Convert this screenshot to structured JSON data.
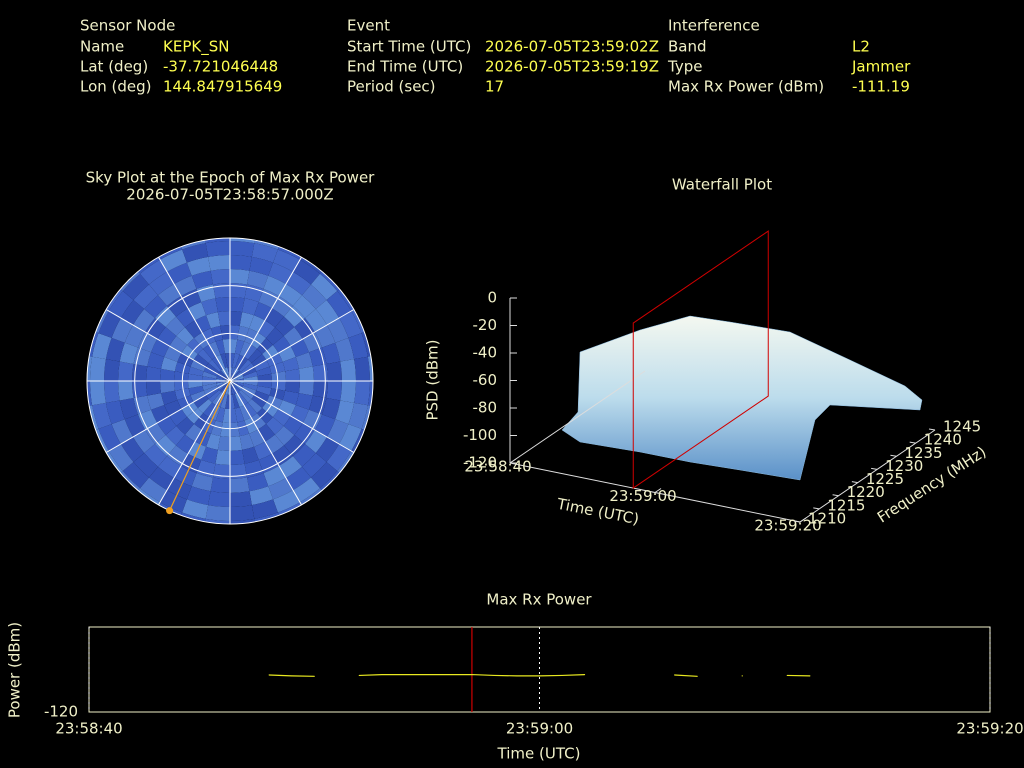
{
  "info": [
    {
      "heading": "Sensor Node",
      "rows": [
        [
          "Name",
          "KEPK_SN"
        ],
        [
          "Lat (deg)",
          "-37.721046448"
        ],
        [
          "Lon (deg)",
          "144.847915649"
        ]
      ]
    },
    {
      "heading": "Event",
      "rows": [
        [
          "Start Time (UTC)",
          "2026-07-05T23:59:02Z"
        ],
        [
          "End Time (UTC)",
          "2026-07-05T23:59:19Z"
        ],
        [
          "Period (sec)",
          "17"
        ]
      ]
    },
    {
      "heading": "Interference",
      "rows": [
        [
          "Band",
          "L2"
        ],
        [
          "Type",
          "Jammer"
        ],
        [
          "Max Rx Power (dBm)",
          "-111.19"
        ]
      ]
    }
  ],
  "chart_data": [
    {
      "type": "polar",
      "title": "Sky Plot at the Epoch of Max Rx Power",
      "subtitle": "2026-07-05T23:58:57.000Z",
      "rings": [
        0,
        30,
        60
      ],
      "spokes": [
        0,
        30,
        60,
        90,
        120,
        150,
        180,
        210,
        240,
        270,
        300,
        330
      ],
      "azimuth": 205,
      "elevation": 0,
      "color": "#f0a020"
    },
    {
      "type": "surface3d",
      "title": "Waterfall Plot",
      "zlabel": "PSD (dBm)",
      "xlabel": "Time (UTC)",
      "ylabel": "Frequency (MHz)",
      "zlim": [
        -120,
        0
      ],
      "zticks": [
        0,
        -20,
        -40,
        -60,
        -80,
        -100,
        -120
      ],
      "xlim": [
        0,
        40
      ],
      "xticks": [
        {
          "value": 0,
          "label": "23:58:40"
        },
        {
          "value": 20,
          "label": "23:59:00"
        },
        {
          "value": 40,
          "label": "23:59:20"
        }
      ],
      "ylim": [
        1210,
        1245
      ],
      "yticks": [
        1210,
        1215,
        1220,
        1225,
        1230,
        1235,
        1240,
        1245
      ],
      "plane_x": 17,
      "plane_color": "#d00000"
    },
    {
      "type": "line",
      "title": "Max Rx Power",
      "xlabel": "Time (UTC)",
      "ylabel": "Power (dBm)",
      "xlim": [
        0,
        40
      ],
      "xticks": [
        {
          "value": 0,
          "label": "23:58:40"
        },
        {
          "value": 20,
          "label": "23:59:00"
        },
        {
          "value": 40,
          "label": "23:59:20"
        }
      ],
      "ylim": [
        -120,
        -100
      ],
      "yticks": [
        -120
      ],
      "x": [
        8,
        9,
        10,
        11,
        12,
        13,
        14,
        15,
        16,
        17,
        18,
        19,
        20,
        21,
        22,
        23,
        24,
        25,
        26,
        27,
        28,
        29,
        30,
        31,
        32
      ],
      "values": [
        -111.3,
        -111.5,
        -111.6,
        null,
        -111.4,
        -111.2,
        -111.2,
        -111.2,
        -111.2,
        -111.19,
        -111.4,
        -111.5,
        -111.5,
        -111.4,
        -111.2,
        null,
        null,
        null,
        -111.3,
        -111.6,
        null,
        -111.5,
        null,
        -111.4,
        -111.5
      ],
      "color": "#e8e820",
      "marker_x": 17,
      "marker_color": "#d00000",
      "grid": true
    }
  ]
}
